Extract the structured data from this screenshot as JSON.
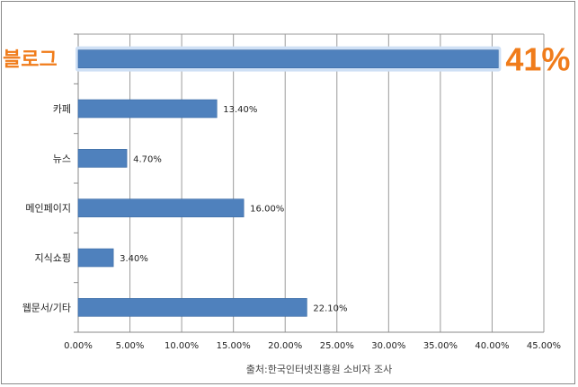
{
  "chart_data": {
    "type": "bar",
    "orientation": "horizontal",
    "categories": [
      "블로그",
      "카페",
      "뉴스",
      "메인페이지",
      "지식쇼핑",
      "웹문서/기타"
    ],
    "values": [
      40.6,
      13.4,
      4.7,
      16.0,
      3.4,
      22.1
    ],
    "data_labels": [
      "41%",
      "13.40%",
      "4.70%",
      "16.00%",
      "3.40%",
      "22.10%"
    ],
    "highlight_index": 0,
    "xlim": [
      0,
      45
    ],
    "x_ticks": [
      "0.00%",
      "5.00%",
      "10.00%",
      "15.00%",
      "20.00%",
      "25.00%",
      "30.00%",
      "35.00%",
      "40.00%",
      "45.00%"
    ],
    "grid": true,
    "legend": "none",
    "bar_color": "#4f81bd",
    "highlight_color": "#f07c1b",
    "source": "출처:한국인터넷진흥원 소비자 조사"
  }
}
